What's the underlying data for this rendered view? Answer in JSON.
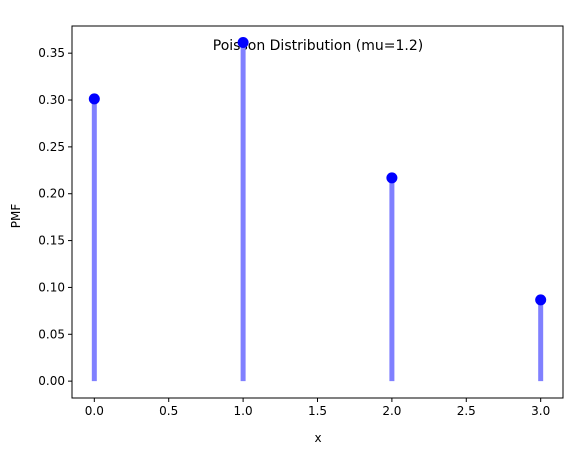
{
  "chart_data": {
    "type": "stem",
    "title": "Poisson Distribution (mu=1.2)",
    "xlabel": "x",
    "ylabel": "PMF",
    "x": [
      0,
      1,
      2,
      3
    ],
    "values": [
      0.3012,
      0.3614,
      0.2169,
      0.0867
    ],
    "xlim": [
      -0.15,
      3.15
    ],
    "ylim": [
      -0.018,
      0.379
    ],
    "xticks": [
      0.0,
      0.5,
      1.0,
      1.5,
      2.0,
      2.5,
      3.0
    ],
    "xtick_labels": [
      "0.0",
      "0.5",
      "1.0",
      "1.5",
      "2.0",
      "2.5",
      "3.0"
    ],
    "yticks": [
      0.0,
      0.05,
      0.1,
      0.15,
      0.2,
      0.25,
      0.3,
      0.35
    ],
    "ytick_labels": [
      "0.00",
      "0.05",
      "0.10",
      "0.15",
      "0.20",
      "0.25",
      "0.30",
      "0.35"
    ],
    "grid": false,
    "legend": "none",
    "colors": {
      "stem": "#8080ff",
      "marker": "#0000ff"
    }
  }
}
